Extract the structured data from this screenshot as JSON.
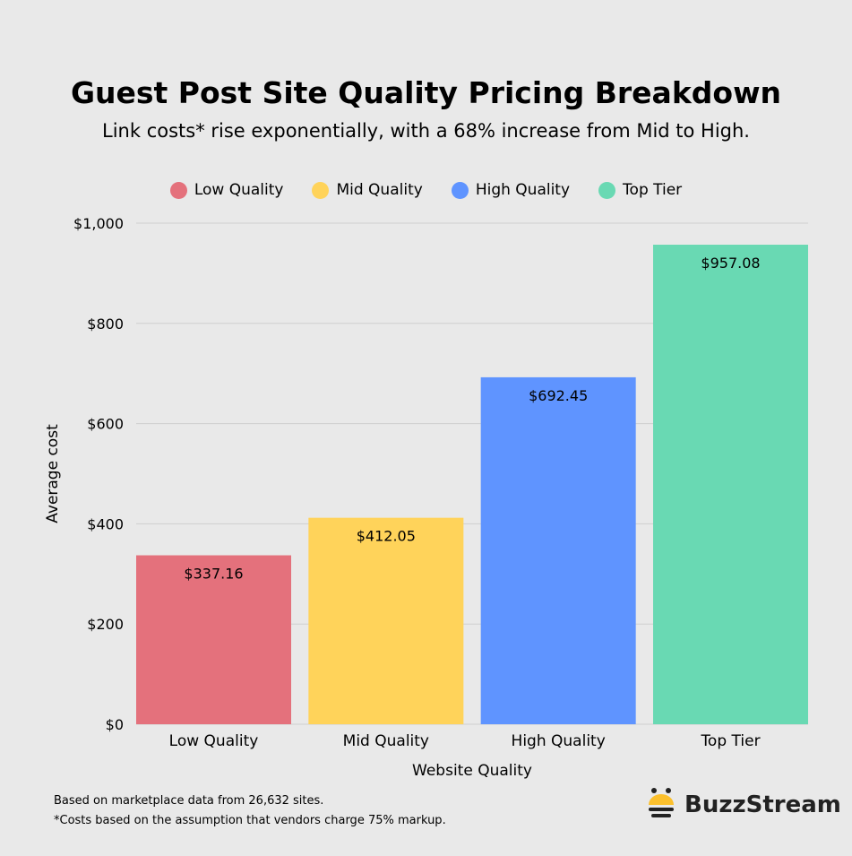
{
  "chart_data": {
    "type": "bar",
    "title": "Guest Post Site Quality Pricing Breakdown",
    "subtitle": "Link costs* rise exponentially, with a 68% increase from Mid to High.",
    "categories": [
      "Low Quality",
      "Mid Quality",
      "High Quality",
      "Top Tier"
    ],
    "values": [
      337.16,
      412.05,
      692.45,
      957.08
    ],
    "value_labels": [
      "$337.16",
      "$412.05",
      "$692.45",
      "$957.08"
    ],
    "colors": [
      "#e4717c",
      "#ffd35a",
      "#5f94ff",
      "#69d9b3"
    ],
    "xlabel": "Website Quality",
    "ylabel": "Average cost",
    "ylim": [
      0,
      1000
    ],
    "yticks": [
      0,
      200,
      400,
      600,
      800,
      1000
    ],
    "ytick_labels": [
      "$0",
      "$200",
      "$400",
      "$600",
      "$800",
      "$1,000"
    ],
    "grid": true,
    "legend": {
      "placement": "top",
      "entries": [
        "Low Quality",
        "Mid Quality",
        "High Quality",
        "Top Tier"
      ]
    }
  },
  "footnotes": [
    "Based on marketplace data from 26,632 sites.",
    "*Costs based on the assumption that vendors charge 75% markup."
  ],
  "logo": {
    "text": "BuzzStream"
  }
}
